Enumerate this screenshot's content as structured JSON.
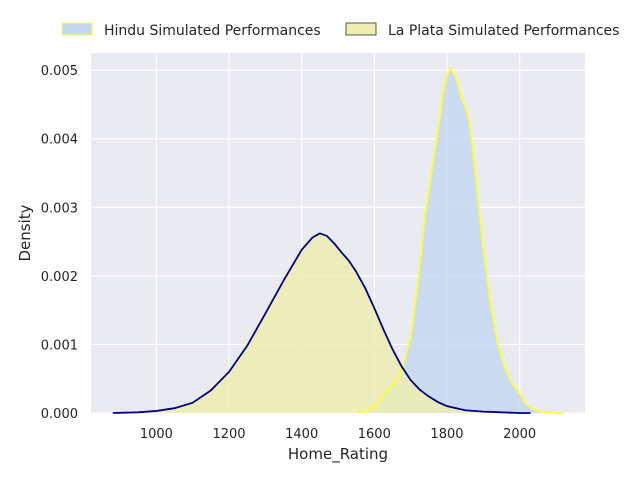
{
  "chart_data": {
    "type": "area",
    "title": "",
    "xlabel": "Home_Rating",
    "ylabel": "Density",
    "xlim": [
      820,
      2180
    ],
    "ylim": [
      0,
      0.00525
    ],
    "xticks": [
      1000,
      1200,
      1400,
      1600,
      1800,
      2000
    ],
    "yticks": [
      0.0,
      0.001,
      0.002,
      0.003,
      0.004,
      0.005
    ],
    "ytick_labels": [
      "0.000",
      "0.001",
      "0.002",
      "0.003",
      "0.004",
      "0.005"
    ],
    "grid": true,
    "legend_placement": "top",
    "series": [
      {
        "name": "Hindu Simulated Performances",
        "fill_color": "#c5d8f1",
        "line_color": "#ffff33",
        "x": [
          1555,
          1580,
          1600,
          1620,
          1640,
          1660,
          1680,
          1700,
          1720,
          1740,
          1760,
          1780,
          1790,
          1800,
          1810,
          1820,
          1830,
          1840,
          1850,
          1860,
          1870,
          1880,
          1890,
          1900,
          1920,
          1940,
          1960,
          1980,
          2000,
          2020,
          2040,
          2060,
          2080,
          2100,
          2120
        ],
        "y": [
          0.0,
          3e-05,
          9e-05,
          0.00022,
          0.00035,
          0.00045,
          0.0007,
          0.0011,
          0.0019,
          0.0029,
          0.0036,
          0.0043,
          0.0047,
          0.00493,
          0.00502,
          0.00495,
          0.0048,
          0.0046,
          0.00448,
          0.0043,
          0.0039,
          0.0034,
          0.0029,
          0.0024,
          0.0016,
          0.001,
          0.00065,
          0.00043,
          0.00028,
          0.00012,
          5e-05,
          2e-05,
          1e-05,
          0.0,
          0.0
        ]
      },
      {
        "name": "La Plata Simulated Performances",
        "fill_color": "#eeeeb0",
        "line_color": "#000080",
        "x": [
          880,
          950,
          1000,
          1050,
          1100,
          1150,
          1200,
          1250,
          1300,
          1350,
          1400,
          1430,
          1450,
          1470,
          1490,
          1510,
          1530,
          1550,
          1575,
          1600,
          1625,
          1650,
          1675,
          1700,
          1725,
          1750,
          1775,
          1800,
          1850,
          1900,
          1950,
          2000,
          2030
        ],
        "y": [
          0.0,
          1e-05,
          3e-05,
          7e-05,
          0.00015,
          0.00033,
          0.0006,
          0.00098,
          0.00145,
          0.00193,
          0.00238,
          0.00256,
          0.00262,
          0.00258,
          0.00247,
          0.00234,
          0.00222,
          0.00206,
          0.00182,
          0.00153,
          0.00122,
          0.00093,
          0.00068,
          0.00048,
          0.00034,
          0.00024,
          0.00016,
          0.0001,
          4e-05,
          2e-05,
          1e-05,
          0.0,
          0.0
        ]
      }
    ]
  }
}
